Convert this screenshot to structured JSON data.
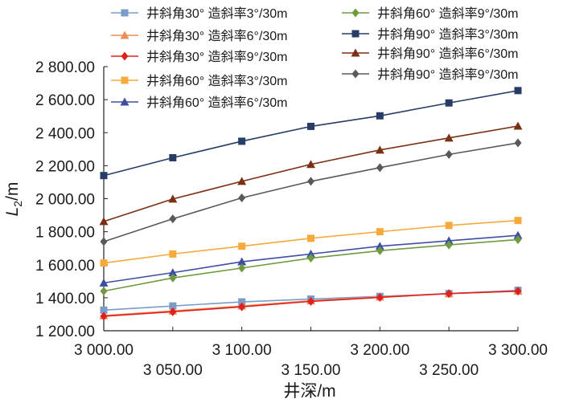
{
  "chart_data": {
    "type": "line",
    "xlabel": "井深/m",
    "ylabel_main": "L",
    "ylabel_sub": "2",
    "ylabel_unit": "/m",
    "x": [
      3000,
      3050,
      3100,
      3150,
      3200,
      3250,
      3300
    ],
    "xlim": [
      3000,
      3300
    ],
    "ylim": [
      1200,
      2800
    ],
    "x_ticks_upper": [
      "3 000.00",
      "3 100.00",
      "3 200.00",
      "3 300.00"
    ],
    "x_ticks_lower": [
      "3 050.00",
      "3 150.00",
      "3 250.00"
    ],
    "y_ticks": [
      "1 200.00",
      "1 400.00",
      "1 600.00",
      "1 800.00",
      "2 000.00",
      "2 200.00",
      "2 400.00",
      "2 600.00",
      "2 800.00"
    ],
    "grid": false,
    "legend_position": "top",
    "series": [
      {
        "name": "井斜角30°  造斜率3°/30m",
        "color": "#7a9cc8",
        "marker": "square",
        "values": [
          1325,
          1350,
          1375,
          1392,
          1408,
          1425,
          1445
        ]
      },
      {
        "name": "井斜角30°  造斜率6°/30m",
        "color": "#ee8c55",
        "marker": "triangle",
        "values": [
          1292,
          1320,
          1350,
          1382,
          1405,
          1425,
          1440
        ]
      },
      {
        "name": "井斜角30°  造斜率9°/30m",
        "color": "#e0201e",
        "marker": "diamond",
        "values": [
          1288,
          1315,
          1345,
          1378,
          1402,
          1425,
          1440
        ]
      },
      {
        "name": "井斜角60°  造斜率3°/30m",
        "color": "#f7a93b",
        "marker": "square",
        "values": [
          1610,
          1665,
          1712,
          1760,
          1800,
          1838,
          1868
        ]
      },
      {
        "name": "井斜角60°  造斜率6°/30m",
        "color": "#3f4ea3",
        "marker": "triangle",
        "values": [
          1490,
          1552,
          1618,
          1665,
          1712,
          1745,
          1778
        ]
      },
      {
        "name": "井斜角60°  造斜率9°/30m",
        "color": "#6f9a3e",
        "marker": "diamond",
        "values": [
          1440,
          1520,
          1580,
          1640,
          1685,
          1720,
          1752
        ]
      },
      {
        "name": "井斜角90°  造斜率3°/30m",
        "color": "#283d66",
        "marker": "square",
        "values": [
          2140,
          2248,
          2348,
          2438,
          2502,
          2580,
          2655
        ]
      },
      {
        "name": "井斜角90°  造斜率6°/30m",
        "color": "#7a3014",
        "marker": "triangle",
        "values": [
          1862,
          1998,
          2105,
          2208,
          2295,
          2368,
          2440
        ]
      },
      {
        "name": "井斜角90°  造斜率9°/30m",
        "color": "#595959",
        "marker": "diamond",
        "values": [
          1740,
          1878,
          2005,
          2105,
          2188,
          2268,
          2338
        ]
      }
    ]
  }
}
